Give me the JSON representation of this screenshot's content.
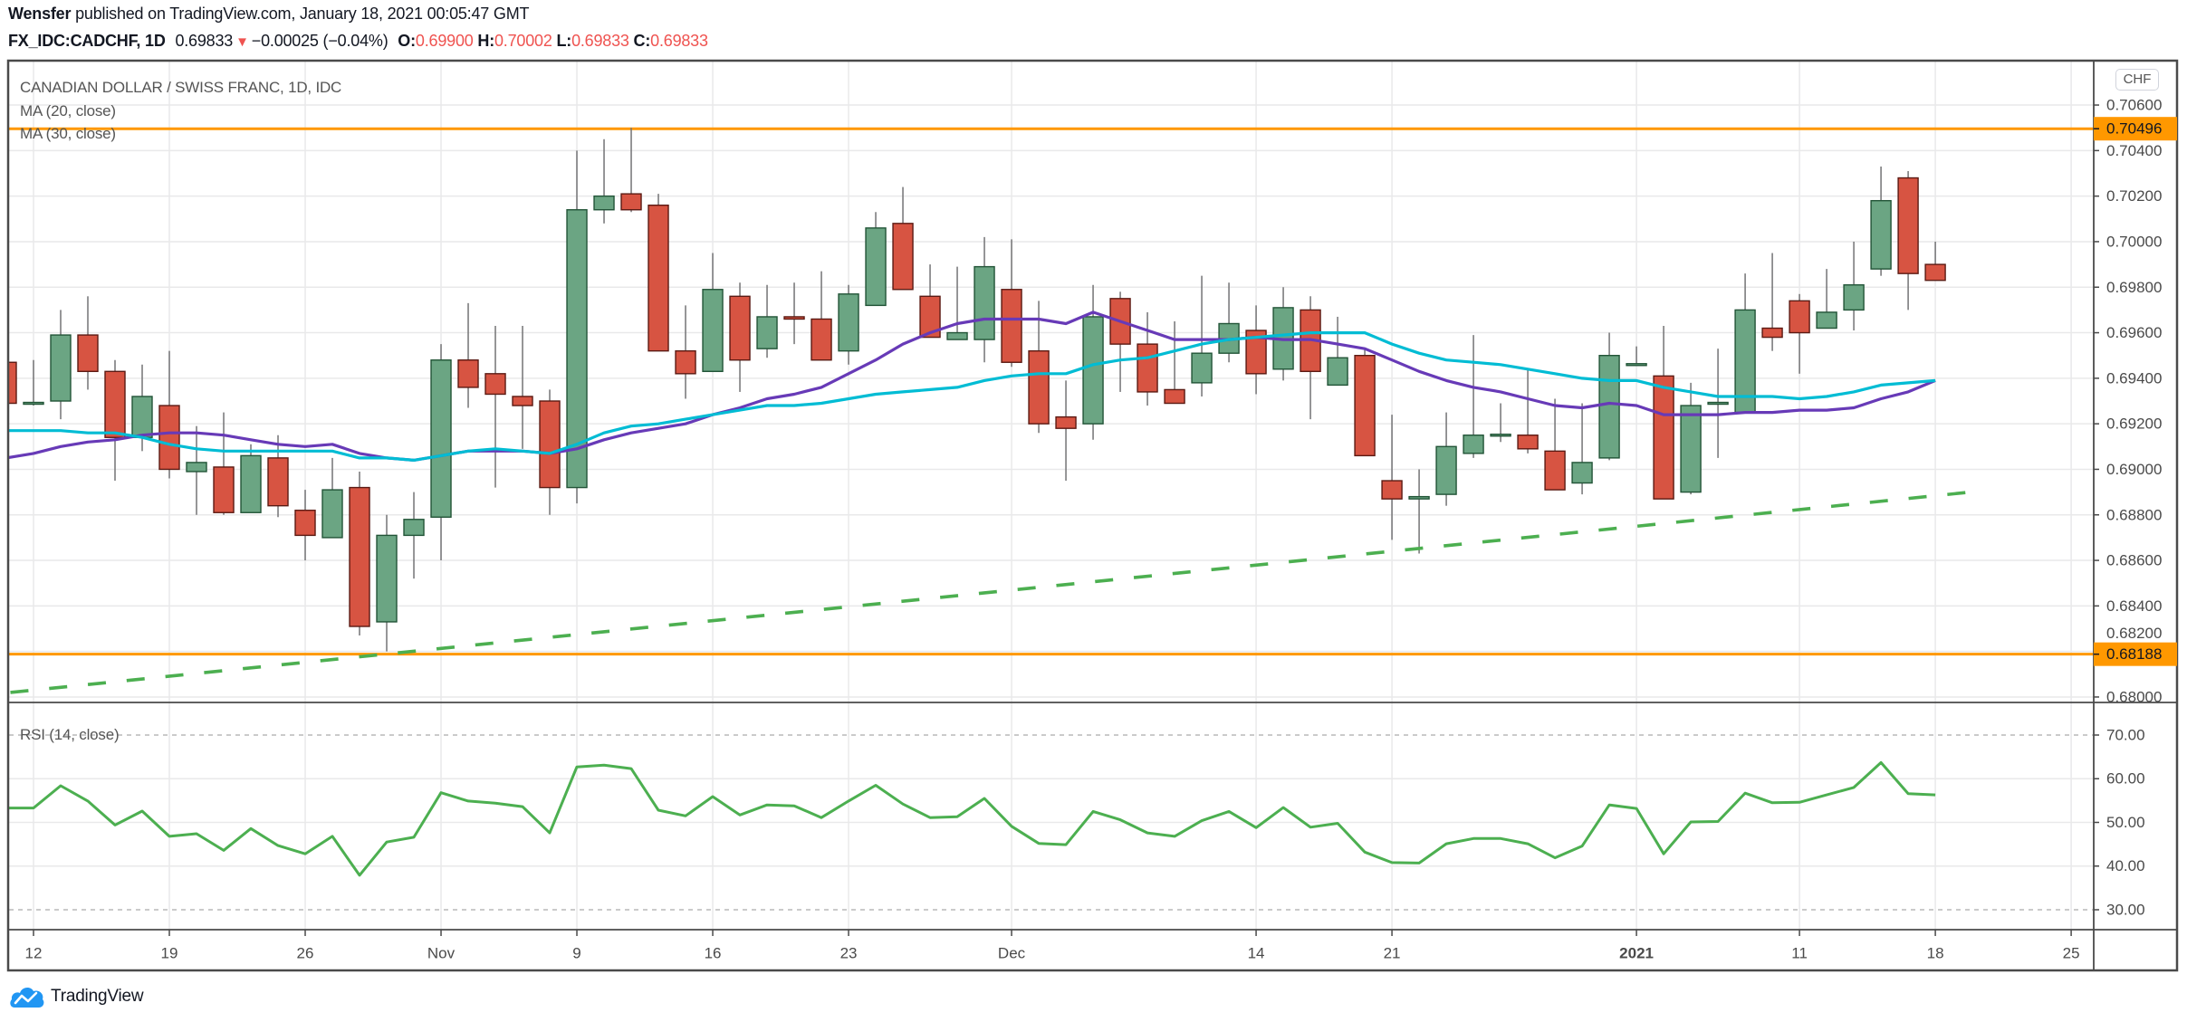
{
  "header": {
    "publisher": "Wensfer",
    "published_text": "published on TradingView.com, January 18, 2021 00:05:47 GMT",
    "symbol": "FX_IDC:CADCHF, 1D",
    "last_price": "0.69833",
    "change": "−0.00025 (−0.04%)",
    "direction_icon": "down-triangle",
    "ohlc": {
      "o_label": "O:",
      "o": "0.69900",
      "h_label": "H:",
      "h": "0.70002",
      "l_label": "L:",
      "l": "0.69833",
      "c_label": "C:",
      "c": "0.69833"
    }
  },
  "legend": {
    "title": "CANADIAN DOLLAR / SWISS FRANC, 1D, IDC",
    "ma20": "MA (20, close)",
    "ma30": "MA (30, close)",
    "rsi": "RSI (14, close)"
  },
  "price_scale": {
    "currency_button": "CHF"
  },
  "footer": {
    "brand": "TradingView",
    "logo_icon": "tradingview-cloud-logo"
  },
  "colors": {
    "up_fill": "#6ba583",
    "up_border": "#225437",
    "down_fill": "#d75442",
    "down_border": "#5b1a13",
    "wick": "#737375",
    "ma20": "#673ab7",
    "ma30": "#00bcd4",
    "rsi": "#4caf50",
    "trendline": "#4caf50",
    "level_line": "#ff9800",
    "grid": "#e9e9ea",
    "axis_text": "#4a4a4a",
    "frame": "#4a4a4a",
    "header_red": "#ef5350",
    "logo_blue": "#2196f3"
  },
  "chart_data": {
    "type": "candlestick",
    "title": "CANADIAN DOLLAR / SWISS FRANC, 1D, IDC",
    "x_range": [
      0.1,
      76.83
    ],
    "x_ticks": [
      {
        "bar": 1,
        "label": "12"
      },
      {
        "bar": 6,
        "label": "19"
      },
      {
        "bar": 11,
        "label": "26"
      },
      {
        "bar": 16,
        "label": "Nov"
      },
      {
        "bar": 21,
        "label": "9"
      },
      {
        "bar": 26,
        "label": "16"
      },
      {
        "bar": 31,
        "label": "23"
      },
      {
        "bar": 37,
        "label": "Dec"
      },
      {
        "bar": 46,
        "label": "14"
      },
      {
        "bar": 51,
        "label": "21"
      },
      {
        "bar": 60,
        "label": "2021",
        "bold": true
      },
      {
        "bar": 66,
        "label": "11"
      },
      {
        "bar": 71,
        "label": "18"
      },
      {
        "bar": 76,
        "label": "25"
      }
    ],
    "price": {
      "ylabel": "CHF",
      "ylim": [
        0.67976,
        0.70795
      ],
      "y_ticks": [
        {
          "value": 0.706,
          "label": "0.70600"
        },
        {
          "value": 0.704,
          "label": "0.70400"
        },
        {
          "value": 0.702,
          "label": "0.70200"
        },
        {
          "value": 0.7,
          "label": "0.70000"
        },
        {
          "value": 0.698,
          "label": "0.69800"
        },
        {
          "value": 0.696,
          "label": "0.69600"
        },
        {
          "value": 0.694,
          "label": "0.69400"
        },
        {
          "value": 0.692,
          "label": "0.69200"
        },
        {
          "value": 0.69,
          "label": "0.69000"
        },
        {
          "value": 0.688,
          "label": "0.68800"
        },
        {
          "value": 0.686,
          "label": "0.68600"
        },
        {
          "value": 0.684,
          "label": "0.68400"
        },
        {
          "value": 0.682,
          "label": "0.68200"
        },
        {
          "value": 0.68,
          "label": "0.68000"
        }
      ],
      "ohlc_fields": [
        "open",
        "high",
        "low",
        "close"
      ],
      "ohlc": [
        [
          0.6947,
          0.695,
          0.6929,
          0.6929
        ],
        [
          0.6929,
          0.6948,
          0.6928,
          0.6929
        ],
        [
          0.693,
          0.697,
          0.6922,
          0.6959
        ],
        [
          0.6959,
          0.6976,
          0.6935,
          0.6943
        ],
        [
          0.6943,
          0.6948,
          0.6895,
          0.6914
        ],
        [
          0.6914,
          0.6946,
          0.6908,
          0.6932
        ],
        [
          0.6928,
          0.6952,
          0.6896,
          0.69
        ],
        [
          0.6899,
          0.6919,
          0.688,
          0.6903
        ],
        [
          0.6901,
          0.6925,
          0.688,
          0.6881
        ],
        [
          0.6881,
          0.6911,
          0.6881,
          0.6906
        ],
        [
          0.6905,
          0.6915,
          0.6879,
          0.6884
        ],
        [
          0.6882,
          0.6891,
          0.686,
          0.6871
        ],
        [
          0.687,
          0.6905,
          0.687,
          0.6891
        ],
        [
          0.6892,
          0.6899,
          0.6827,
          0.6831
        ],
        [
          0.6833,
          0.688,
          0.682,
          0.6871
        ],
        [
          0.6871,
          0.689,
          0.6852,
          0.6878
        ],
        [
          0.6879,
          0.6955,
          0.686,
          0.6948
        ],
        [
          0.6948,
          0.6973,
          0.6927,
          0.6936
        ],
        [
          0.6942,
          0.6963,
          0.6892,
          0.6933
        ],
        [
          0.6932,
          0.6963,
          0.6909,
          0.6928
        ],
        [
          0.693,
          0.6935,
          0.688,
          0.6892
        ],
        [
          0.6892,
          0.704,
          0.6885,
          0.7014
        ],
        [
          0.7014,
          0.7045,
          0.7008,
          0.702
        ],
        [
          0.7021,
          0.705,
          0.7013,
          0.7014
        ],
        [
          0.7016,
          0.7021,
          0.6952,
          0.6952
        ],
        [
          0.6952,
          0.6972,
          0.6931,
          0.6942
        ],
        [
          0.6943,
          0.6995,
          0.6943,
          0.6979
        ],
        [
          0.6976,
          0.6982,
          0.6934,
          0.6948
        ],
        [
          0.6953,
          0.6981,
          0.6949,
          0.6967
        ],
        [
          0.6967,
          0.6982,
          0.6955,
          0.6966
        ],
        [
          0.6966,
          0.6987,
          0.6948,
          0.6948
        ],
        [
          0.6952,
          0.6981,
          0.6946,
          0.6977
        ],
        [
          0.6972,
          0.7013,
          0.6972,
          0.7006
        ],
        [
          0.7008,
          0.7024,
          0.6979,
          0.6979
        ],
        [
          0.6976,
          0.699,
          0.6958,
          0.6958
        ],
        [
          0.6957,
          0.6989,
          0.6957,
          0.696
        ],
        [
          0.6957,
          0.7002,
          0.6947,
          0.6989
        ],
        [
          0.6979,
          0.7001,
          0.6945,
          0.6947
        ],
        [
          0.6952,
          0.6974,
          0.6916,
          0.692
        ],
        [
          0.6923,
          0.6939,
          0.6895,
          0.6918
        ],
        [
          0.692,
          0.6981,
          0.6913,
          0.6967
        ],
        [
          0.6975,
          0.6978,
          0.6934,
          0.6955
        ],
        [
          0.6955,
          0.6969,
          0.6928,
          0.6934
        ],
        [
          0.6935,
          0.6965,
          0.6929,
          0.6929
        ],
        [
          0.6938,
          0.6985,
          0.6932,
          0.6951
        ],
        [
          0.6951,
          0.6982,
          0.6947,
          0.6964
        ],
        [
          0.6961,
          0.6972,
          0.6933,
          0.6942
        ],
        [
          0.6944,
          0.698,
          0.6939,
          0.6971
        ],
        [
          0.697,
          0.6976,
          0.6922,
          0.6943
        ],
        [
          0.6937,
          0.6967,
          0.6937,
          0.6949
        ],
        [
          0.695,
          0.6953,
          0.6906,
          0.6906
        ],
        [
          0.6895,
          0.6924,
          0.6869,
          0.6887
        ],
        [
          0.6887,
          0.69,
          0.6863,
          0.6888
        ],
        [
          0.6889,
          0.6925,
          0.6884,
          0.691
        ],
        [
          0.6907,
          0.6959,
          0.6905,
          0.6915
        ],
        [
          0.6915,
          0.6929,
          0.6912,
          0.6915
        ],
        [
          0.6915,
          0.6944,
          0.6907,
          0.6909
        ],
        [
          0.6908,
          0.6931,
          0.6891,
          0.6891
        ],
        [
          0.6894,
          0.6929,
          0.6889,
          0.6903
        ],
        [
          0.6905,
          0.696,
          0.6904,
          0.695
        ],
        [
          0.6946,
          0.6954,
          0.6946,
          0.6946
        ],
        [
          0.6941,
          0.6963,
          0.6887,
          0.6887
        ],
        [
          0.689,
          0.6938,
          0.6889,
          0.6928
        ],
        [
          0.6929,
          0.6953,
          0.6905,
          0.6929
        ],
        [
          0.6925,
          0.6986,
          0.6925,
          0.697
        ],
        [
          0.6962,
          0.6995,
          0.6952,
          0.6958
        ],
        [
          0.6974,
          0.6977,
          0.6942,
          0.696
        ],
        [
          0.6962,
          0.6988,
          0.6962,
          0.6969
        ],
        [
          0.697,
          0.7,
          0.6961,
          0.6981
        ],
        [
          0.6988,
          0.7033,
          0.6985,
          0.7018
        ],
        [
          0.7028,
          0.7031,
          0.697,
          0.6986
        ],
        [
          0.699,
          0.7,
          0.6983,
          0.6983
        ]
      ],
      "series": [
        {
          "name": "MA (20, close)",
          "key": "ma20",
          "values": [
            0.6905,
            0.6907,
            0.691,
            0.6912,
            0.6913,
            0.6915,
            0.6916,
            0.6916,
            0.6915,
            0.6913,
            0.6911,
            0.691,
            0.6911,
            0.6907,
            0.6905,
            0.6904,
            0.6906,
            0.6908,
            0.6908,
            0.6908,
            0.6907,
            0.6909,
            0.6913,
            0.6916,
            0.6918,
            0.692,
            0.6924,
            0.6927,
            0.6931,
            0.6933,
            0.6936,
            0.6942,
            0.6948,
            0.6955,
            0.696,
            0.6964,
            0.6966,
            0.6966,
            0.6966,
            0.6964,
            0.6969,
            0.6965,
            0.6961,
            0.6957,
            0.6957,
            0.6957,
            0.6958,
            0.6957,
            0.6957,
            0.6955,
            0.6953,
            0.6948,
            0.6943,
            0.6939,
            0.6936,
            0.6934,
            0.6931,
            0.6928,
            0.6927,
            0.6929,
            0.6928,
            0.6924,
            0.6924,
            0.6924,
            0.6925,
            0.6925,
            0.6926,
            0.6926,
            0.6927,
            0.6931,
            0.6934,
            0.6939
          ]
        },
        {
          "name": "MA (30, close)",
          "key": "ma30",
          "values": [
            0.6917,
            0.6917,
            0.6917,
            0.6916,
            0.6916,
            0.6914,
            0.6911,
            0.6909,
            0.6908,
            0.6908,
            0.6908,
            0.6908,
            0.6908,
            0.6905,
            0.6905,
            0.6904,
            0.6906,
            0.6908,
            0.6909,
            0.6908,
            0.6907,
            0.6911,
            0.6916,
            0.6919,
            0.692,
            0.6922,
            0.6924,
            0.6926,
            0.6928,
            0.6928,
            0.6929,
            0.6931,
            0.6933,
            0.6934,
            0.6935,
            0.6936,
            0.6939,
            0.6941,
            0.6942,
            0.6942,
            0.6946,
            0.6948,
            0.6949,
            0.6952,
            0.6955,
            0.6957,
            0.6958,
            0.6959,
            0.696,
            0.696,
            0.696,
            0.6955,
            0.6951,
            0.6948,
            0.6947,
            0.6946,
            0.6944,
            0.6942,
            0.694,
            0.6939,
            0.6939,
            0.6936,
            0.6934,
            0.6932,
            0.6932,
            0.6932,
            0.6931,
            0.6932,
            0.6934,
            0.6937,
            0.6938,
            0.6939
          ]
        }
      ],
      "hlines": [
        {
          "value": 0.70496,
          "label": "0.70496"
        },
        {
          "value": 0.68188,
          "label": "0.68188"
        }
      ],
      "trendline": {
        "style": "dashed",
        "start": [
          0.15,
          0.6802
        ],
        "end": [
          72.3,
          0.689
        ]
      }
    },
    "rsi": {
      "name": "RSI (14, close)",
      "ylim": [
        25.44,
        77.46
      ],
      "y_ticks": [
        {
          "value": 70,
          "label": "70.00",
          "style": "dashed"
        },
        {
          "value": 60,
          "label": "60.00",
          "style": "solid"
        },
        {
          "value": 50,
          "label": "50.00",
          "style": "solid"
        },
        {
          "value": 40,
          "label": "40.00",
          "style": "solid"
        },
        {
          "value": 30,
          "label": "30.00",
          "style": "dashed"
        }
      ],
      "values": [
        53.3,
        53.3,
        58.4,
        54.9,
        49.4,
        52.6,
        46.8,
        47.4,
        43.6,
        48.6,
        44.7,
        42.8,
        46.8,
        37.9,
        45.5,
        46.6,
        56.8,
        54.9,
        54.4,
        53.6,
        47.6,
        62.7,
        63.1,
        62.3,
        52.8,
        51.5,
        55.9,
        51.7,
        54.0,
        53.8,
        51.1,
        54.9,
        58.5,
        54.2,
        51.1,
        51.3,
        55.5,
        49.1,
        45.2,
        44.9,
        52.5,
        50.6,
        47.6,
        46.8,
        50.4,
        52.5,
        48.8,
        53.4,
        48.9,
        49.8,
        43.2,
        40.8,
        40.7,
        45.1,
        46.3,
        46.3,
        45.1,
        41.9,
        44.6,
        54.0,
        53.2,
        42.8,
        50.1,
        50.2,
        56.7,
        54.5,
        54.6,
        56.3,
        58.0,
        63.7,
        56.6,
        56.3
      ]
    }
  }
}
